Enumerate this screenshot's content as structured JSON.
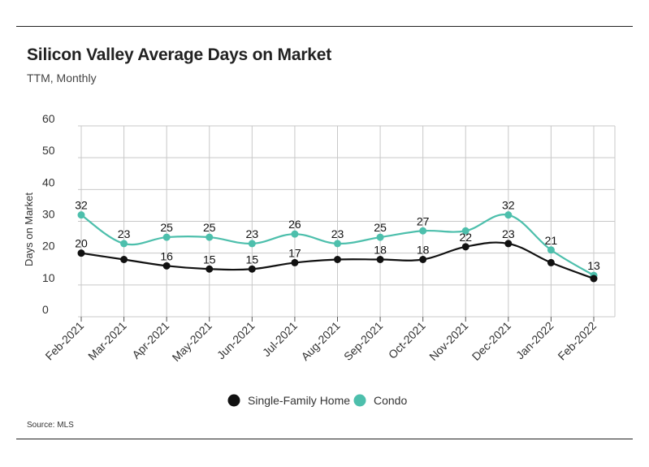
{
  "header": {
    "title": "Silicon Valley Average Days on Market",
    "subtitle": "TTM, Monthly"
  },
  "footer": {
    "source": "Source: MLS"
  },
  "colors": {
    "single_family": "#111111",
    "condo": "#4dbfac",
    "grid": "#c8c8c8"
  },
  "chart_data": {
    "type": "line",
    "title": "Silicon Valley Average Days on Market",
    "subtitle": "TTM, Monthly",
    "xlabel": "",
    "ylabel": "Days on Market",
    "ylim": [
      0,
      60
    ],
    "yticks": [
      "0",
      "10",
      "20",
      "30",
      "40",
      "50",
      "60"
    ],
    "grid": true,
    "legend_placement": "bottom",
    "categories": [
      "Feb-2021",
      "Mar-2021",
      "Apr-2021",
      "May-2021",
      "Jun-2021",
      "Jul-2021",
      "Aug-2021",
      "Sep-2021",
      "Oct-2021",
      "Nov-2021",
      "Dec-2021",
      "Jan-2022",
      "Feb-2022"
    ],
    "series": [
      {
        "name": "Single-Family Home",
        "values": [
          20,
          18,
          16,
          15,
          15,
          17,
          18,
          18,
          18,
          22,
          23,
          17,
          12
        ],
        "labels": [
          "20",
          "",
          "16",
          "15",
          "15",
          "17",
          "",
          "18",
          "18",
          "22",
          "23",
          "",
          ""
        ]
      },
      {
        "name": "Condo",
        "values": [
          32,
          23,
          25,
          25,
          23,
          26,
          23,
          25,
          27,
          27,
          32,
          21,
          13
        ],
        "labels": [
          "32",
          "23",
          "25",
          "25",
          "23",
          "26",
          "23",
          "25",
          "27",
          "",
          "32",
          "21",
          "13"
        ]
      }
    ]
  }
}
